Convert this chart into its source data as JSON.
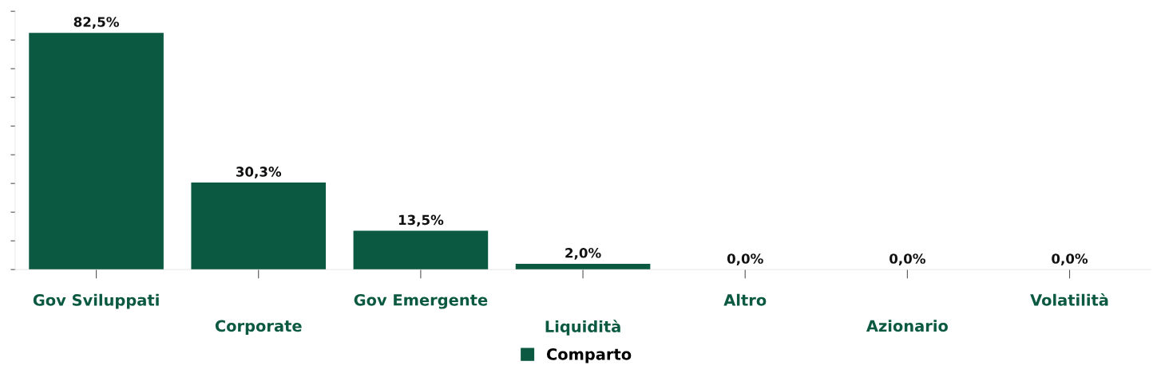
{
  "chart_data": {
    "type": "bar",
    "categories": [
      "Gov Sviluppati",
      "Corporate",
      "Gov Emergente",
      "Liquidità",
      "Altro",
      "Azionario",
      "Volatilità"
    ],
    "series": [
      {
        "name": "Comparto",
        "color": "#0a5940",
        "values": [
          82.5,
          30.3,
          13.5,
          2.0,
          0.0,
          0.0,
          0.0
        ],
        "value_labels": [
          "82,5%",
          "30,3%",
          "13,5%",
          "2,0%",
          "0,0%",
          "0,0%",
          "0,0%"
        ]
      }
    ],
    "ylim": [
      0,
      90
    ],
    "yticks": [
      {
        "value": 0,
        "label": null
      },
      {
        "value": 10,
        "label": null
      },
      {
        "value": 20,
        "label": null
      },
      {
        "value": 30,
        "label": null
      },
      {
        "value": 40,
        "label": null
      },
      {
        "value": 50,
        "label": null
      },
      {
        "value": 60,
        "label": null
      },
      {
        "value": 70,
        "label": null
      },
      {
        "value": 80,
        "label": null
      },
      {
        "value": 90,
        "label": null
      }
    ],
    "tick_labels": "x",
    "grid": false,
    "legend": "bottom"
  }
}
